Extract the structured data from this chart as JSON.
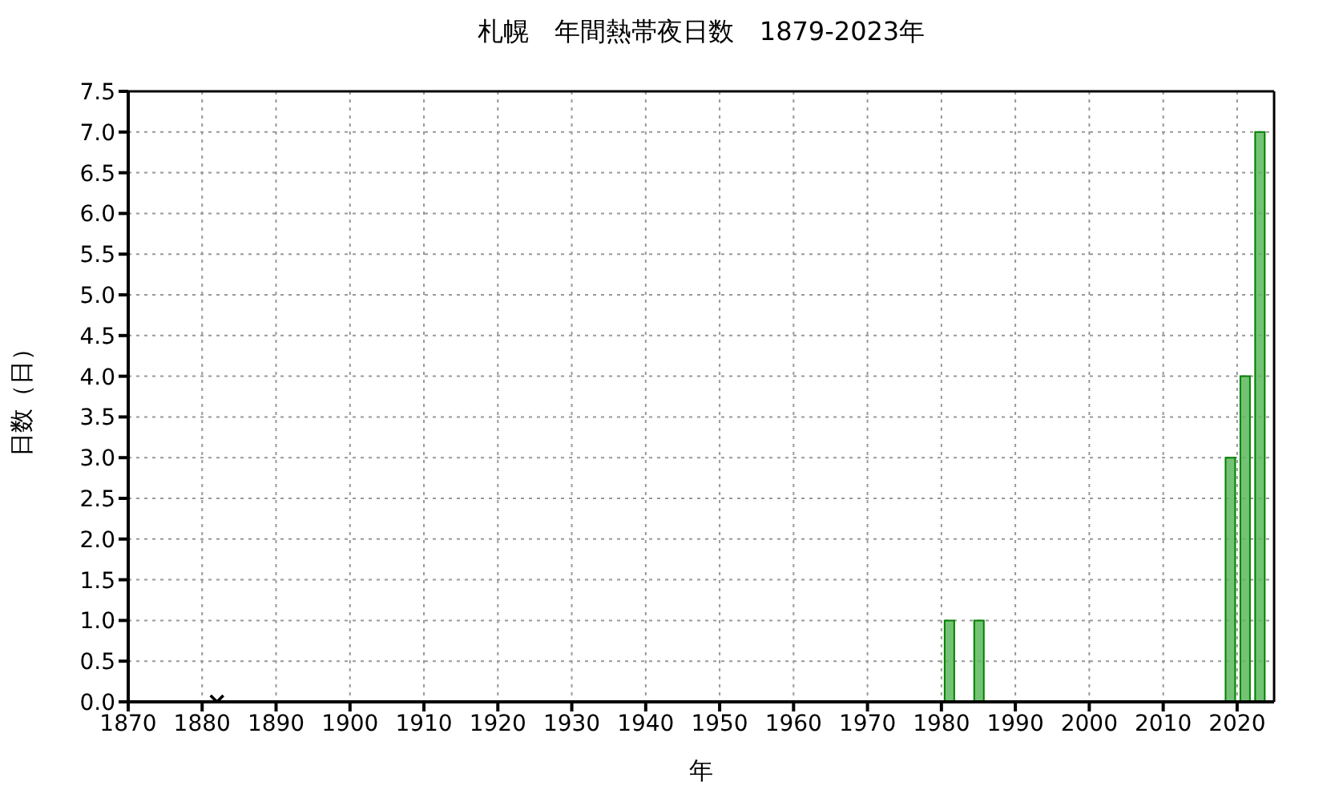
{
  "chart_data": {
    "type": "bar",
    "title": "札幌　年間熱帯夜日数　1879-2023年",
    "xlabel": "年",
    "ylabel": "日数（日）",
    "x": [
      1981,
      1985,
      2019,
      2021,
      2023
    ],
    "series": [
      {
        "color": "#5cb85c",
        "values": [
          1,
          1,
          3,
          4,
          7
        ]
      },
      {
        "type": "scatter",
        "marker": "cross",
        "color": "#000000",
        "x": [
          1882
        ],
        "values": [
          0
        ]
      }
    ],
    "xlim": [
      1870,
      2025
    ],
    "xticks": [
      1870,
      1880,
      1890,
      1900,
      1910,
      1920,
      1930,
      1940,
      1950,
      1960,
      1970,
      1980,
      1990,
      2000,
      2010,
      2020
    ],
    "ylim": [
      0,
      7.5
    ],
    "yticks": [
      {
        "value": 0,
        "label": "0.0"
      },
      {
        "value": 0.5,
        "label": "0.5"
      },
      {
        "value": 1,
        "label": "1.0"
      },
      {
        "value": 1.5,
        "label": "1.5"
      },
      {
        "value": 2,
        "label": "2.0"
      },
      {
        "value": 2.5,
        "label": "2.5"
      },
      {
        "value": 3,
        "label": "3.0"
      },
      {
        "value": 3.5,
        "label": "3.5"
      },
      {
        "value": 4,
        "label": "4.0"
      },
      {
        "value": 4.5,
        "label": "4.5"
      },
      {
        "value": 5,
        "label": "5.0"
      },
      {
        "value": 5.5,
        "label": "5.5"
      },
      {
        "value": 6,
        "label": "6.0"
      },
      {
        "value": 6.5,
        "label": "6.5"
      },
      {
        "value": 7,
        "label": "7.0"
      },
      {
        "value": 7.5,
        "label": "7.5"
      }
    ],
    "grid": true,
    "legend": false
  }
}
